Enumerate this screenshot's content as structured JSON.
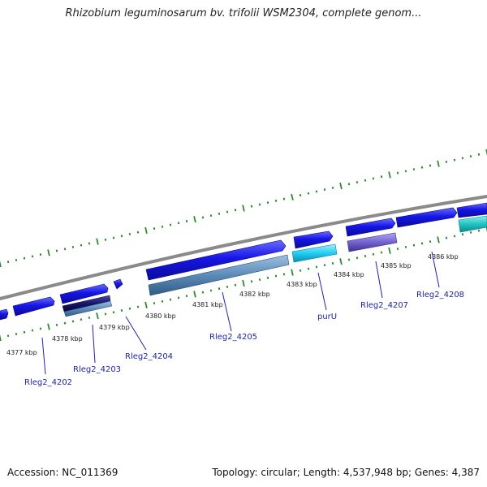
{
  "title": "Rhizobium leguminosarum bv. trifolii WSM2304, complete genom...",
  "footer": {
    "accession": "Accession: NC_011369",
    "summary": "Topology: circular; Length: 4,537,948 bp; Genes: 4,387"
  },
  "kbp_labels": [
    "4377 kbp",
    "4378 kbp",
    "4379 kbp",
    "4380 kbp",
    "4381 kbp",
    "4382 kbp",
    "4383 kbp",
    "4384 kbp",
    "4385 kbp",
    "4386 kbp"
  ],
  "gene_labels": [
    "Rleg2_4202",
    "Rleg2_4203",
    "Rleg2_4204",
    "Rleg2_4205",
    "purU",
    "Rleg2_4207",
    "Rleg2_4208"
  ],
  "colors": {
    "backbone": "#8a8a8a",
    "tick": "#2e8b2e",
    "gene_forward": "#1616e6",
    "cds_steel": "#5d8bb8",
    "cds_navy": "#15156a",
    "cds_cyan": "#22ccf0",
    "cds_purple": "#7262d0",
    "cds_teal": "#20c4c4",
    "label": "#1f24a8"
  }
}
